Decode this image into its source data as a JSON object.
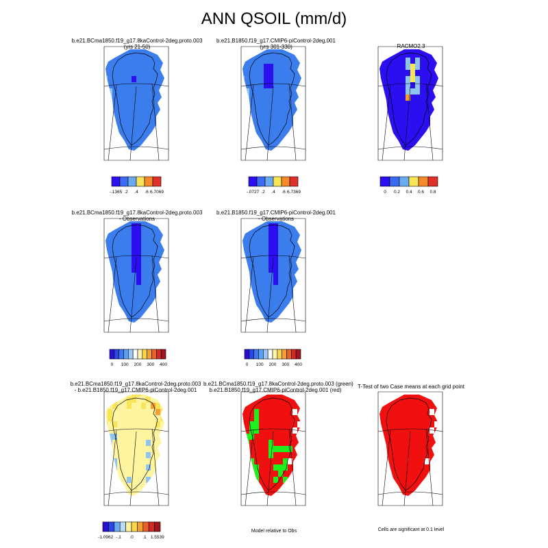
{
  "title": "ANN QSOIL (mm/d)",
  "panels": {
    "p1": {
      "caption_line1": "b.e21.BCma1850.f19_g17.8kaControl-2deg.proto.003",
      "caption_line2": "(yrs 21-50)"
    },
    "p2": {
      "caption_line1": "b.e21.B1850.f19_g17.CMIP6-piControl-2deg.001",
      "caption_line2": "(yrs 301-330)"
    },
    "p3": {
      "caption_line1": "RACMO2.3",
      "caption_line2": ""
    },
    "p4": {
      "caption_line1": "b.e21.BCma1850.f19_g17.8kaControl-2deg.proto.003",
      "caption_line2": "- Observations"
    },
    "p5": {
      "caption_line1": "b.e21.B1850.f19_g17.CMIP6-piControl-2deg.001",
      "caption_line2": "- Observations"
    },
    "p7": {
      "caption_line1": "b.e21.BCma1850.f19_g17.8kaControl-2deg.proto.003",
      "caption_line2": "- b.e21.B1850.f19_g17.CMIP6-piControl-2deg.001"
    },
    "p8": {
      "caption_line1": "b.e21.BCma1850.f19_g17.8kaControl-2deg.proto.003 (green)",
      "caption_line2": "b.e21.B1850.f19_g17.CMIP6-piControl-2deg.001 (red)"
    },
    "p9": {
      "caption_line1": "T-Test of two Case means at each grid point",
      "caption_line2": ""
    }
  },
  "colorbars": {
    "cb1": {
      "colors": [
        "#2b0ff0",
        "#3b6bf0",
        "#6aaaf0",
        "#f9e55a",
        "#f58a2a",
        "#e0302a"
      ],
      "labels": [
        "-.1365",
        ".2",
        ".4",
        ".6",
        "6.7069"
      ]
    },
    "cb2": {
      "colors": [
        "#2b0ff0",
        "#3b6bf0",
        "#6aaaf0",
        "#f9e55a",
        "#f58a2a",
        "#e0302a"
      ],
      "labels": [
        "-.0727",
        ".2",
        ".4",
        ".6",
        "6.7369"
      ]
    },
    "cb3": {
      "colors": [
        "#2b0ff0",
        "#3b6bf0",
        "#6aaaf0",
        "#f9e55a",
        "#f58a2a",
        "#e0302a"
      ],
      "labels": [
        "0",
        "0.2",
        "0.4",
        "0.6",
        "0.8"
      ]
    },
    "cb4": {
      "colors": [
        "#2a0fd0",
        "#2a45e8",
        "#3c78f0",
        "#5aa0f4",
        "#9ac8f6",
        "#ffffff",
        "#fff4b0",
        "#fbd54a",
        "#f5a030",
        "#e8602a",
        "#d02a28",
        "#a0141e"
      ],
      "labels": [
        "0",
        "100",
        "200",
        "300",
        "400"
      ]
    },
    "cb5": {
      "colors": [
        "#2a0fd0",
        "#2a45e8",
        "#3c78f0",
        "#5aa0f4",
        "#9ac8f6",
        "#ffffff",
        "#fff4b0",
        "#fbd54a",
        "#f5a030",
        "#e8602a",
        "#d02a28",
        "#a0141e"
      ],
      "labels": [
        "0",
        "100",
        "200",
        "300",
        "400"
      ]
    },
    "cb7": {
      "colors": [
        "#2a0fd0",
        "#2a45e8",
        "#6aaaf0",
        "#b8dcf6",
        "#fff4a0",
        "#fbd54a",
        "#f5a030",
        "#e8602a",
        "#d02a28",
        "#a0141e"
      ],
      "labels": [
        "-1.0962",
        "-.1",
        ".0",
        ".1",
        "1.5539"
      ]
    }
  },
  "notes": {
    "model_relative": "Model relative to Obs",
    "significance": "Cells are significant at 0.1 level"
  },
  "colors": {
    "blue": "#3b7ded",
    "dark_blue": "#2b0ff0",
    "light_blue": "#8fc4f0",
    "yellow": "#f9e55a",
    "pale_yellow": "#fff4a0",
    "orange": "#f5a030",
    "green": "#1ef01e",
    "red": "#f01010"
  }
}
